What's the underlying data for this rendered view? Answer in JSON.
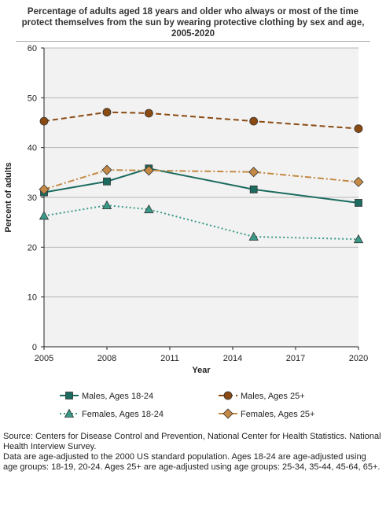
{
  "chart_data": {
    "type": "line",
    "title": "Percentage of adults aged 18 years and older who always or most of the time protect themselves from the sun by wearing protective clothing by sex and age, 2005-2020",
    "xlabel": "Year",
    "ylabel": "Percent of adults",
    "xlim": [
      2005,
      2020
    ],
    "ylim": [
      0,
      60
    ],
    "xticks": [
      "2005",
      "2008",
      "2011",
      "2014",
      "2017",
      "2020"
    ],
    "yticks": [
      "0",
      "10",
      "20",
      "30",
      "40",
      "50",
      "60"
    ],
    "grid": true,
    "legend_position": "bottom",
    "series": [
      {
        "name": "Males, Ages 18-24",
        "x": [
          2005,
          2008,
          2010,
          2015,
          2020
        ],
        "values": [
          31.0,
          33.2,
          35.8,
          31.6,
          28.9
        ],
        "color": "#1b6b5f",
        "marker": "square",
        "line": "solid"
      },
      {
        "name": "Males, Ages 25+",
        "x": [
          2005,
          2008,
          2010,
          2015,
          2020
        ],
        "values": [
          45.3,
          47.1,
          46.9,
          45.3,
          43.8
        ],
        "color": "#8a4a12",
        "marker": "circle",
        "line": "dashed"
      },
      {
        "name": "Females, Ages 18-24",
        "x": [
          2005,
          2008,
          2010,
          2015,
          2020
        ],
        "values": [
          26.3,
          28.4,
          27.6,
          22.1,
          21.6
        ],
        "color": "#3a9a88",
        "marker": "triangle",
        "line": "dotted"
      },
      {
        "name": "Females, Ages 25+",
        "x": [
          2005,
          2008,
          2010,
          2015,
          2020
        ],
        "values": [
          31.6,
          35.5,
          35.4,
          35.1,
          33.1
        ],
        "color": "#c48a45",
        "marker": "diamond",
        "line": "dashdot"
      }
    ]
  },
  "notes": {
    "source": "Source: Centers for Disease Control and Prevention, National Center for Health Statistics. National Health Interview Survey.",
    "data_note": "Data are age-adjusted to the 2000 US standard population. Ages 18-24 are age-adjusted using age groups: 18-19, 20-24. Ages 25+ are age-adjusted using age groups: 25-34, 35-44, 45-64, 65+."
  }
}
